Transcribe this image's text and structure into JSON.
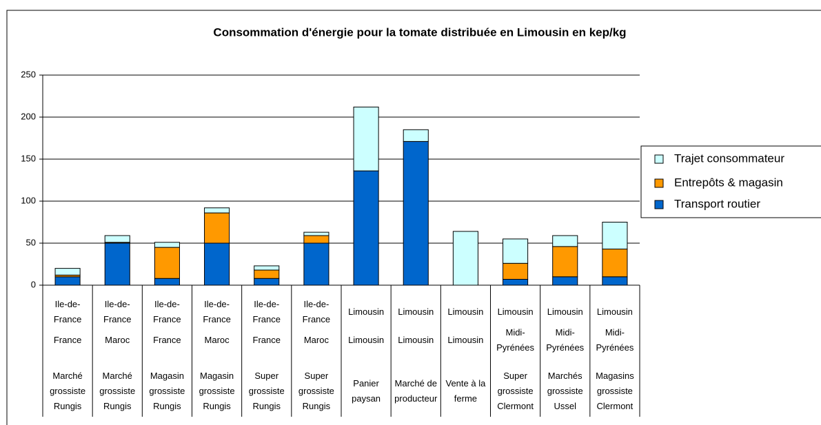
{
  "chart_data": {
    "type": "stacked_bar",
    "title": "Consommation d'énergie pour la tomate distribuée en Limousin en kep/kg",
    "category_levels": [
      [
        "Ile-de-France",
        "Ile-de-France",
        "Ile-de-France",
        "Ile-de-France",
        "Ile-de-France",
        "Ile-de-France",
        "Limousin",
        "Limousin",
        "Limousin",
        "Limousin",
        "Limousin",
        "Limousin"
      ],
      [
        "France",
        "Maroc",
        "France",
        "Maroc",
        "France",
        "Maroc",
        "Limousin",
        "Limousin",
        "Limousin",
        "Midi-Pyrénées",
        "Midi-Pyrénées",
        "Midi-Pyrénées"
      ],
      [
        "Marché grossiste Rungis",
        "Marché grossiste Rungis",
        "Magasin grossiste Rungis",
        "Magasin grossiste Rungis",
        "Super grossiste Rungis",
        "Super grossiste Rungis",
        "Panier paysan",
        "Marché de producteur",
        "Vente à la ferme",
        "Super grossiste Clermont",
        "Marchés grossiste Ussel",
        "Magasins grossiste Clermont"
      ]
    ],
    "series": [
      {
        "name": "Transport routier",
        "color": "#0066cc",
        "values": [
          10,
          50,
          8,
          50,
          8,
          50,
          136,
          171,
          0,
          7,
          10,
          10
        ]
      },
      {
        "name": "Entrepôts & magasin",
        "color": "#ff9900",
        "values": [
          2,
          1,
          37,
          36,
          10,
          9,
          0,
          0,
          0,
          19,
          36,
          33
        ]
      },
      {
        "name": "Trajet consommateur",
        "color": "#ccffff",
        "values": [
          8,
          8,
          6,
          6,
          5,
          4,
          76,
          14,
          64,
          29,
          13,
          32
        ]
      }
    ],
    "ylim": [
      0,
      250
    ],
    "yticks": [
      0,
      50,
      100,
      150,
      200,
      250
    ],
    "grid": true,
    "legend": "right"
  }
}
